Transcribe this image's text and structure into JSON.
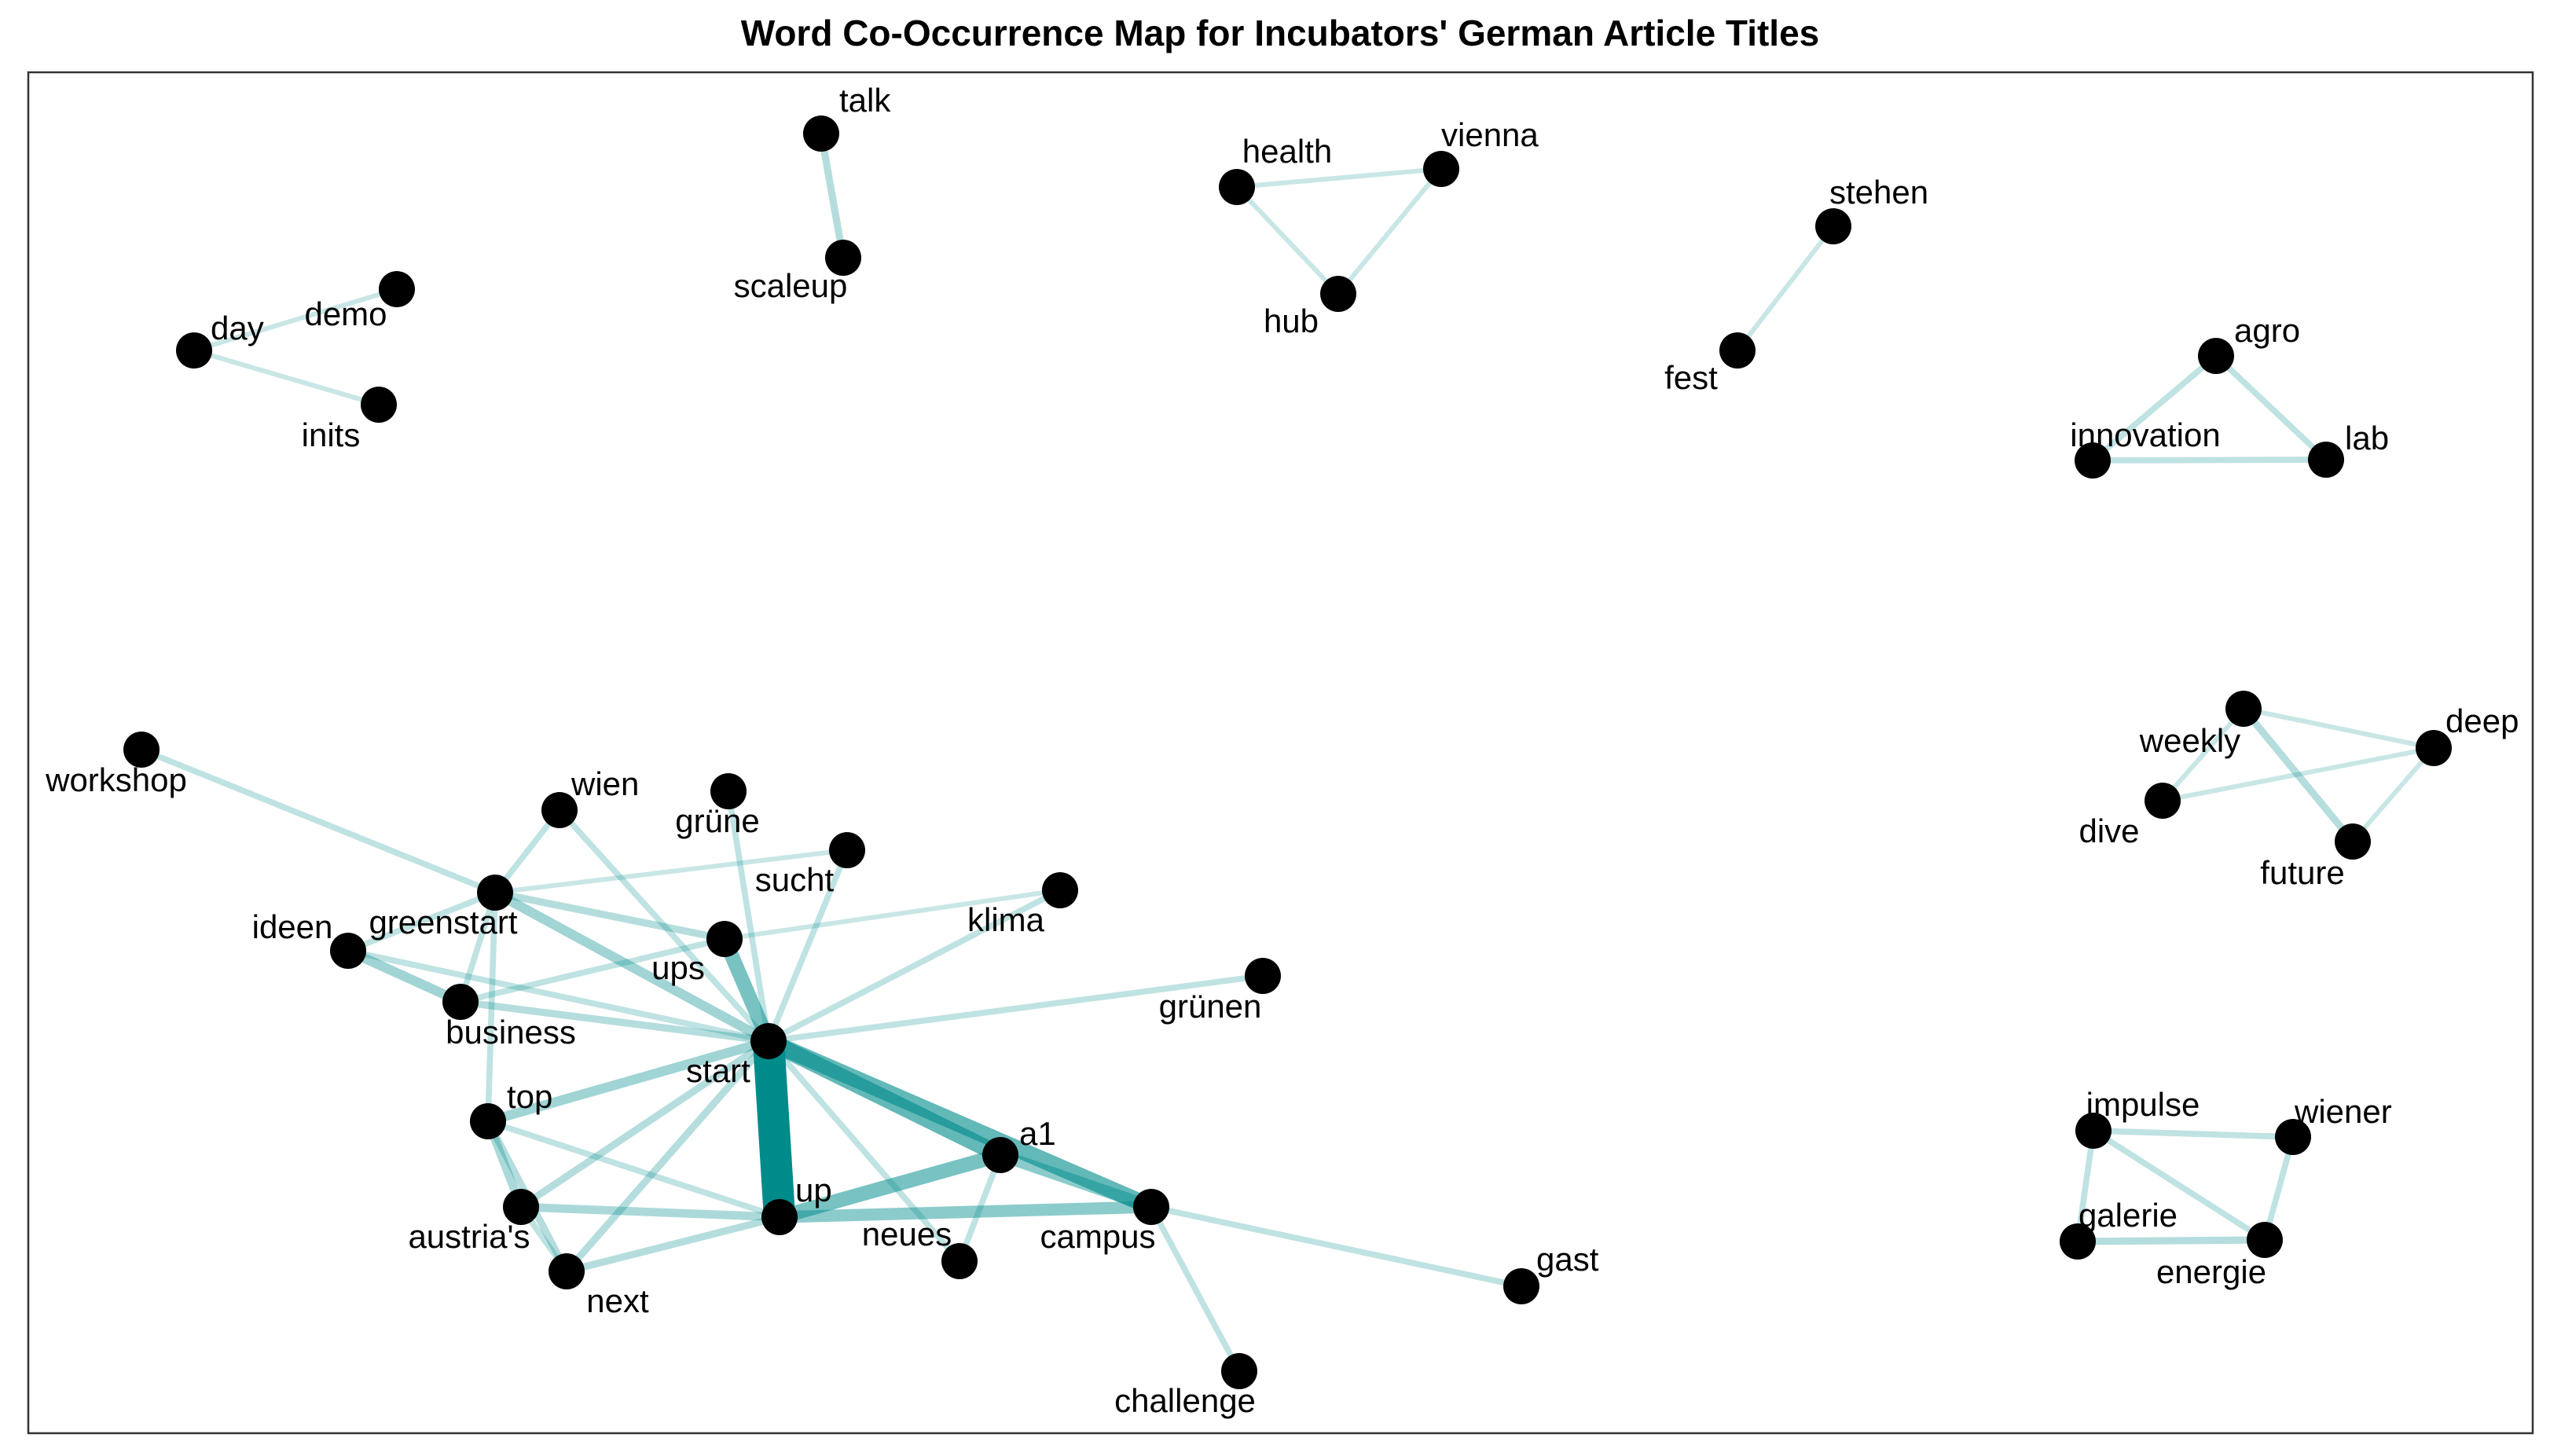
{
  "title": "Word Co-Occurrence Map for Incubators' German Article Titles",
  "colors": {
    "edge": "#008B8B",
    "node": "#000000",
    "background": "#ffffff",
    "frame": "#333333"
  },
  "nodes": [
    {
      "id": "talk",
      "label": "talk"
    },
    {
      "id": "scaleup",
      "label": "scaleup"
    },
    {
      "id": "health",
      "label": "health"
    },
    {
      "id": "vienna",
      "label": "vienna"
    },
    {
      "id": "hub",
      "label": "hub"
    },
    {
      "id": "stehen",
      "label": "stehen"
    },
    {
      "id": "fest",
      "label": "fest"
    },
    {
      "id": "demo",
      "label": "demo"
    },
    {
      "id": "day",
      "label": "day"
    },
    {
      "id": "inits",
      "label": "inits"
    },
    {
      "id": "agro",
      "label": "agro"
    },
    {
      "id": "innovation",
      "label": "innovation"
    },
    {
      "id": "lab",
      "label": "lab"
    },
    {
      "id": "weekly",
      "label": "weekly"
    },
    {
      "id": "deep",
      "label": "deep"
    },
    {
      "id": "dive",
      "label": "dive"
    },
    {
      "id": "future",
      "label": "future"
    },
    {
      "id": "impulse",
      "label": "impulse"
    },
    {
      "id": "wiener",
      "label": "wiener"
    },
    {
      "id": "galerie",
      "label": "galerie"
    },
    {
      "id": "energie",
      "label": "energie"
    },
    {
      "id": "workshop",
      "label": "workshop"
    },
    {
      "id": "wien",
      "label": "wien"
    },
    {
      "id": "grune",
      "label": "grüne"
    },
    {
      "id": "sucht",
      "label": "sucht"
    },
    {
      "id": "klima",
      "label": "klima"
    },
    {
      "id": "greenstart",
      "label": "greenstart"
    },
    {
      "id": "ideen",
      "label": "ideen"
    },
    {
      "id": "ups",
      "label": "ups"
    },
    {
      "id": "business",
      "label": "business"
    },
    {
      "id": "grunen",
      "label": "grünen"
    },
    {
      "id": "start",
      "label": "start"
    },
    {
      "id": "top",
      "label": "top"
    },
    {
      "id": "a1",
      "label": "a1"
    },
    {
      "id": "up",
      "label": "up"
    },
    {
      "id": "austrias",
      "label": "austria's"
    },
    {
      "id": "neues",
      "label": "neues"
    },
    {
      "id": "campus",
      "label": "campus"
    },
    {
      "id": "next",
      "label": "next"
    },
    {
      "id": "gast",
      "label": "gast"
    },
    {
      "id": "challenge",
      "label": "challenge"
    }
  ],
  "edges": [
    {
      "source": "talk",
      "target": "scaleup",
      "weight": 2
    },
    {
      "source": "health",
      "target": "vienna",
      "weight": 1
    },
    {
      "source": "health",
      "target": "hub",
      "weight": 1
    },
    {
      "source": "vienna",
      "target": "hub",
      "weight": 1
    },
    {
      "source": "stehen",
      "target": "fest",
      "weight": 1
    },
    {
      "source": "day",
      "target": "demo",
      "weight": 1
    },
    {
      "source": "day",
      "target": "inits",
      "weight": 1
    },
    {
      "source": "agro",
      "target": "innovation",
      "weight": 1.5
    },
    {
      "source": "agro",
      "target": "lab",
      "weight": 1.5
    },
    {
      "source": "innovation",
      "target": "lab",
      "weight": 1.5
    },
    {
      "source": "weekly",
      "target": "deep",
      "weight": 1
    },
    {
      "source": "weekly",
      "target": "dive",
      "weight": 1
    },
    {
      "source": "weekly",
      "target": "future",
      "weight": 2
    },
    {
      "source": "dive",
      "target": "deep",
      "weight": 1
    },
    {
      "source": "deep",
      "target": "future",
      "weight": 1
    },
    {
      "source": "impulse",
      "target": "wiener",
      "weight": 1.5
    },
    {
      "source": "impulse",
      "target": "galerie",
      "weight": 1.5
    },
    {
      "source": "impulse",
      "target": "energie",
      "weight": 1.5
    },
    {
      "source": "galerie",
      "target": "energie",
      "weight": 2
    },
    {
      "source": "wiener",
      "target": "energie",
      "weight": 1.5
    },
    {
      "source": "workshop",
      "target": "greenstart",
      "weight": 1.5
    },
    {
      "source": "start",
      "target": "up",
      "weight": 12
    },
    {
      "source": "start",
      "target": "a1",
      "weight": 6
    },
    {
      "source": "start",
      "target": "campus",
      "weight": 6
    },
    {
      "source": "start",
      "target": "ups",
      "weight": 5
    },
    {
      "source": "a1",
      "target": "up",
      "weight": 5
    },
    {
      "source": "a1",
      "target": "campus",
      "weight": 4
    },
    {
      "source": "up",
      "target": "campus",
      "weight": 4
    },
    {
      "source": "greenstart",
      "target": "ideen",
      "weight": 1.5
    },
    {
      "source": "greenstart",
      "target": "start",
      "weight": 3
    },
    {
      "source": "greenstart",
      "target": "ups",
      "weight": 2
    },
    {
      "source": "greenstart",
      "target": "wien",
      "weight": 1.5
    },
    {
      "source": "greenstart",
      "target": "business",
      "weight": 1.5
    },
    {
      "source": "greenstart",
      "target": "top",
      "weight": 1.5
    },
    {
      "source": "greenstart",
      "target": "sucht",
      "weight": 1
    },
    {
      "source": "ideen",
      "target": "business",
      "weight": 3
    },
    {
      "source": "ideen",
      "target": "start",
      "weight": 1.5
    },
    {
      "source": "business",
      "target": "start",
      "weight": 2
    },
    {
      "source": "business",
      "target": "ups",
      "weight": 1.5
    },
    {
      "source": "wien",
      "target": "start",
      "weight": 1.5
    },
    {
      "source": "grune",
      "target": "start",
      "weight": 1.5
    },
    {
      "source": "sucht",
      "target": "start",
      "weight": 1.5
    },
    {
      "source": "klima",
      "target": "start",
      "weight": 1.5
    },
    {
      "source": "klima",
      "target": "ups",
      "weight": 1
    },
    {
      "source": "grunen",
      "target": "start",
      "weight": 1.5
    },
    {
      "source": "top",
      "target": "start",
      "weight": 3
    },
    {
      "source": "top",
      "target": "austrias",
      "weight": 2.5
    },
    {
      "source": "top",
      "target": "next",
      "weight": 2
    },
    {
      "source": "top",
      "target": "up",
      "weight": 1.5
    },
    {
      "source": "austrias",
      "target": "start",
      "weight": 2
    },
    {
      "source": "austrias",
      "target": "up",
      "weight": 2.5
    },
    {
      "source": "austrias",
      "target": "next",
      "weight": 1.5
    },
    {
      "source": "next",
      "target": "start",
      "weight": 2
    },
    {
      "source": "next",
      "target": "up",
      "weight": 2
    },
    {
      "source": "neues",
      "target": "start",
      "weight": 1.5
    },
    {
      "source": "neues",
      "target": "a1",
      "weight": 1.5
    },
    {
      "source": "campus",
      "target": "gast",
      "weight": 1.5
    },
    {
      "source": "campus",
      "target": "challenge",
      "weight": 1.5
    }
  ]
}
